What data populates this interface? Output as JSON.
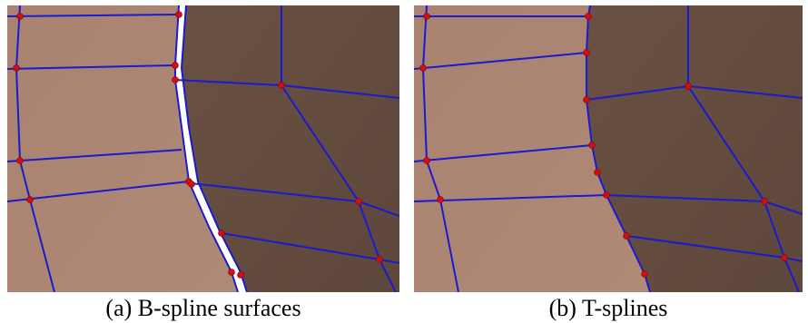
{
  "figures": [
    {
      "caption": "(a) B-spline surfaces"
    },
    {
      "caption": "(b) T-splines"
    }
  ]
}
